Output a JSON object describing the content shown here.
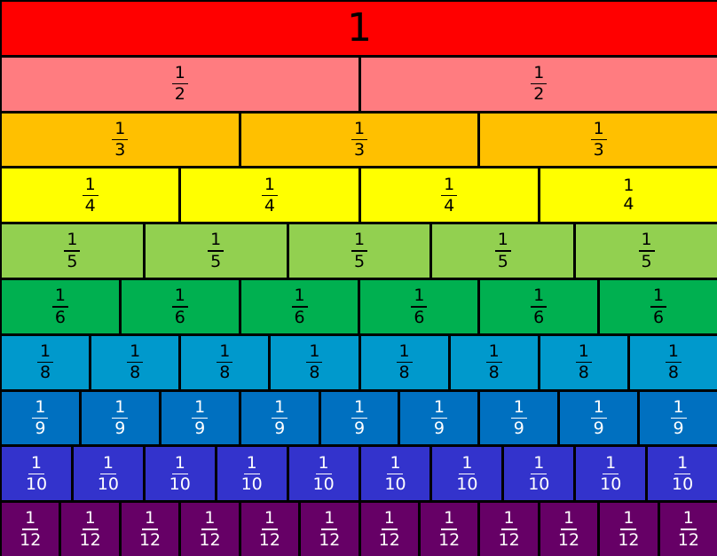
{
  "rows": [
    {
      "numerator": "1",
      "denominator": "",
      "count": 1,
      "color": "#ff0000",
      "text_color": "#000000"
    },
    {
      "numerator": "1",
      "denominator": "2",
      "count": 2,
      "color": "#ff7c80",
      "text_color": "#000000"
    },
    {
      "numerator": "1",
      "denominator": "3",
      "count": 3,
      "color": "#ffc000",
      "text_color": "#000000"
    },
    {
      "numerator": "1",
      "denominator": "4",
      "count": 4,
      "color": "#ffff00",
      "text_color": "#000000"
    },
    {
      "numerator": "1",
      "denominator": "5",
      "count": 5,
      "color": "#92d050",
      "text_color": "#000000"
    },
    {
      "numerator": "1",
      "denominator": "6",
      "count": 6,
      "color": "#00b050",
      "text_color": "#000000"
    },
    {
      "numerator": "1",
      "denominator": "8",
      "count": 8,
      "color": "#0099cc",
      "text_color": "#000000"
    },
    {
      "numerator": "1",
      "denominator": "9",
      "count": 9,
      "color": "#0070c0",
      "text_color": "#ffffff"
    },
    {
      "numerator": "1",
      "denominator": "10",
      "count": 10,
      "color": "#3333cc",
      "text_color": "#ffffff"
    },
    {
      "numerator": "1",
      "denominator": "12",
      "count": 12,
      "color": "#660066",
      "text_color": "#ffffff"
    }
  ]
}
